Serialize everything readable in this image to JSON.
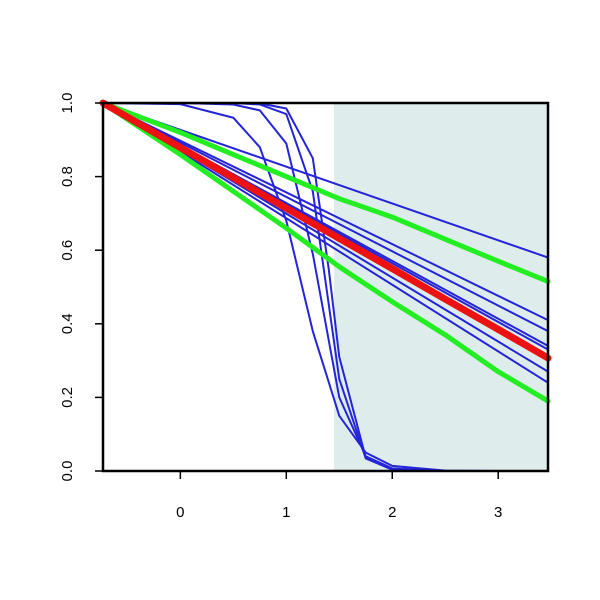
{
  "chart_data": {
    "type": "line",
    "xlim": [
      -0.73,
      3.47
    ],
    "ylim": [
      0,
      1
    ],
    "xticks": [
      0,
      1,
      2,
      3
    ],
    "yticks": [
      {
        "value": 0,
        "label": "0.0"
      },
      {
        "value": 0.2,
        "label": "0.2"
      },
      {
        "value": 0.4,
        "label": "0.4"
      },
      {
        "value": 0.6,
        "label": "0.6"
      },
      {
        "value": 0.8,
        "label": "0.8"
      },
      {
        "value": 1,
        "label": "1.0"
      }
    ],
    "shaded_x": [
      1.45,
      3.47
    ],
    "shade_color": "#dfecec",
    "series": [
      {
        "color": "#2424d8",
        "width": 2,
        "x": [
          -0.73,
          3.47
        ],
        "values": [
          1,
          0.58
        ]
      },
      {
        "color": "#2424d8",
        "width": 2,
        "x": [
          -0.73,
          3.47
        ],
        "values": [
          1,
          0.41
        ]
      },
      {
        "color": "#2424d8",
        "width": 2,
        "x": [
          -0.73,
          3.47
        ],
        "values": [
          1,
          0.38
        ]
      },
      {
        "color": "#2424d8",
        "width": 2,
        "x": [
          -0.73,
          3.47
        ],
        "values": [
          1,
          0.34
        ]
      },
      {
        "color": "#2424d8",
        "width": 2,
        "x": [
          -0.73,
          3.47
        ],
        "values": [
          1,
          0.33
        ]
      },
      {
        "color": "#2424d8",
        "width": 2,
        "x": [
          -0.73,
          3.47
        ],
        "values": [
          1,
          0.27
        ]
      },
      {
        "color": "#2424d8",
        "width": 2,
        "x": [
          -0.73,
          3.47
        ],
        "values": [
          1,
          0.24
        ]
      },
      {
        "color": "#2424d8",
        "width": 2,
        "x": [
          -0.73,
          0,
          0.5,
          0.75,
          1,
          1.25,
          1.5,
          1.75,
          2,
          2.5,
          3,
          3.47
        ],
        "values": [
          1,
          0.997,
          0.96,
          0.88,
          0.68,
          0.38,
          0.15,
          0.05,
          0.014,
          0.001,
          0,
          0
        ]
      },
      {
        "color": "#2424d8",
        "width": 2,
        "x": [
          -0.73,
          0,
          0.5,
          0.75,
          1,
          1.25,
          1.5,
          1.75,
          2,
          2.5,
          3,
          3.47
        ],
        "values": [
          1,
          1,
          0.996,
          0.98,
          0.89,
          0.59,
          0.2,
          0.04,
          0.007,
          0,
          0,
          0
        ]
      },
      {
        "color": "#2424d8",
        "width": 2,
        "x": [
          -0.73,
          0,
          0.5,
          0.75,
          1,
          1.25,
          1.5,
          1.75,
          2,
          2.5,
          3,
          3.47
        ],
        "values": [
          1,
          1,
          1,
          0.996,
          0.97,
          0.76,
          0.25,
          0.034,
          0.004,
          0,
          0,
          0
        ]
      },
      {
        "color": "#2424d8",
        "width": 2,
        "x": [
          -0.73,
          0,
          0.5,
          0.75,
          1,
          1.25,
          1.4,
          1.5,
          1.75,
          2,
          2.5,
          3,
          3.47
        ],
        "values": [
          1,
          1,
          1,
          0.999,
          0.985,
          0.85,
          0.55,
          0.31,
          0.036,
          0.003,
          0,
          0,
          0
        ]
      },
      {
        "color": "#22ee22",
        "width": 5,
        "x": [
          -0.73,
          0,
          0.5,
          1,
          1.5,
          2,
          2.5,
          3,
          3.47
        ],
        "values": [
          1,
          0.92,
          0.86,
          0.8,
          0.74,
          0.69,
          0.63,
          0.57,
          0.515
        ]
      },
      {
        "color": "#22ee22",
        "width": 5,
        "x": [
          -0.73,
          0,
          0.5,
          1,
          1.5,
          2,
          2.5,
          3,
          3.47
        ],
        "values": [
          1,
          0.86,
          0.76,
          0.66,
          0.555,
          0.46,
          0.37,
          0.27,
          0.19
        ]
      },
      {
        "color": "#ee1111",
        "width": 7,
        "x": [
          -0.73,
          0,
          0.5,
          1,
          1.5,
          2,
          2.5,
          3,
          3.47
        ],
        "values": [
          1,
          0.879,
          0.797,
          0.714,
          0.632,
          0.55,
          0.467,
          0.385,
          0.307
        ]
      }
    ]
  }
}
